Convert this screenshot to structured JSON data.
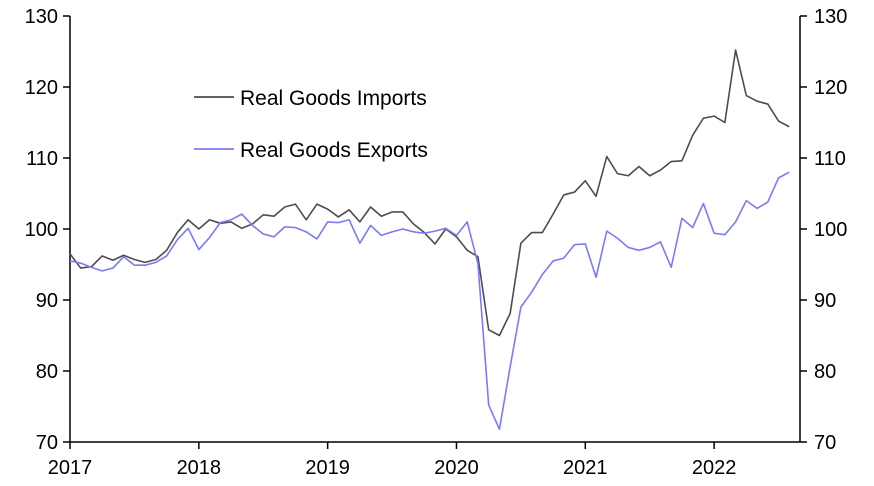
{
  "chart_data": {
    "type": "line",
    "title": "",
    "xlabel": "",
    "ylabel": "",
    "ylim": [
      70,
      130
    ],
    "xlim": [
      "2017-01",
      "2022-09"
    ],
    "yticks": [
      70,
      80,
      90,
      100,
      110,
      120,
      130
    ],
    "xticks": [
      {
        "label": "2017",
        "x": "2017-01"
      },
      {
        "label": "2018",
        "x": "2018-01"
      },
      {
        "label": "2019",
        "x": "2019-01"
      },
      {
        "label": "2020",
        "x": "2020-01"
      },
      {
        "label": "2021",
        "x": "2021-01"
      },
      {
        "label": "2022",
        "x": "2022-01"
      }
    ],
    "dual_y_axis": true,
    "grid": false,
    "legend_position": "upper-left",
    "series": [
      {
        "name": "Real Goods Imports",
        "color": "#4d4d4d",
        "x": [
          "2017-01",
          "2017-02",
          "2017-03",
          "2017-04",
          "2017-05",
          "2017-06",
          "2017-07",
          "2017-08",
          "2017-09",
          "2017-10",
          "2017-11",
          "2017-12",
          "2018-01",
          "2018-02",
          "2018-03",
          "2018-04",
          "2018-05",
          "2018-06",
          "2018-07",
          "2018-08",
          "2018-09",
          "2018-10",
          "2018-11",
          "2018-12",
          "2019-01",
          "2019-02",
          "2019-03",
          "2019-04",
          "2019-05",
          "2019-06",
          "2019-07",
          "2019-08",
          "2019-09",
          "2019-10",
          "2019-11",
          "2019-12",
          "2020-01",
          "2020-02",
          "2020-03",
          "2020-04",
          "2020-05",
          "2020-06",
          "2020-07",
          "2020-08",
          "2020-09",
          "2020-10",
          "2020-11",
          "2020-12",
          "2021-01",
          "2021-02",
          "2021-03",
          "2021-04",
          "2021-05",
          "2021-06",
          "2021-07",
          "2021-08",
          "2021-09",
          "2021-10",
          "2021-11",
          "2021-12",
          "2022-01",
          "2022-02",
          "2022-03",
          "2022-04",
          "2022-05",
          "2022-06",
          "2022-07",
          "2022-08"
        ],
        "values": [
          96.5,
          94.5,
          94.7,
          96.2,
          95.6,
          96.3,
          95.7,
          95.3,
          95.7,
          97.0,
          99.5,
          101.3,
          100.0,
          101.3,
          100.8,
          101.0,
          100.1,
          100.7,
          102.0,
          101.8,
          103.1,
          103.5,
          101.3,
          103.5,
          102.8,
          101.7,
          102.7,
          101.0,
          103.1,
          101.8,
          102.4,
          102.4,
          100.7,
          99.5,
          97.9,
          100.0,
          98.9,
          97.0,
          96.1,
          85.8,
          85.0,
          88.1,
          98.0,
          99.5,
          99.5,
          102.1,
          104.8,
          105.2,
          106.8,
          104.6,
          110.2,
          107.8,
          107.5,
          108.8,
          107.5,
          108.3,
          109.5,
          109.6,
          113.2,
          115.6,
          115.9,
          115.0,
          125.2,
          118.8,
          118.0,
          117.6,
          115.2,
          114.4
        ]
      },
      {
        "name": "Real Goods Exports",
        "color": "#7b7bf5",
        "x": [
          "2017-01",
          "2017-02",
          "2017-03",
          "2017-04",
          "2017-05",
          "2017-06",
          "2017-07",
          "2017-08",
          "2017-09",
          "2017-10",
          "2017-11",
          "2017-12",
          "2018-01",
          "2018-02",
          "2018-03",
          "2018-04",
          "2018-05",
          "2018-06",
          "2018-07",
          "2018-08",
          "2018-09",
          "2018-10",
          "2018-11",
          "2018-12",
          "2019-01",
          "2019-02",
          "2019-03",
          "2019-04",
          "2019-05",
          "2019-06",
          "2019-07",
          "2019-08",
          "2019-09",
          "2019-10",
          "2019-11",
          "2019-12",
          "2020-01",
          "2020-02",
          "2020-03",
          "2020-04",
          "2020-05",
          "2020-06",
          "2020-07",
          "2020-08",
          "2020-09",
          "2020-10",
          "2020-11",
          "2020-12",
          "2021-01",
          "2021-02",
          "2021-03",
          "2021-04",
          "2021-05",
          "2021-06",
          "2021-07",
          "2021-08",
          "2021-09",
          "2021-10",
          "2021-11",
          "2021-12",
          "2022-01",
          "2022-02",
          "2022-03",
          "2022-04",
          "2022-05",
          "2022-06",
          "2022-07",
          "2022-08"
        ],
        "values": [
          95.5,
          95.2,
          94.6,
          94.1,
          94.5,
          96.1,
          94.9,
          94.9,
          95.3,
          96.2,
          98.5,
          100.1,
          97.1,
          98.8,
          100.9,
          101.3,
          102.1,
          100.5,
          99.3,
          98.9,
          100.3,
          100.2,
          99.6,
          98.6,
          101.0,
          100.9,
          101.3,
          98.0,
          100.5,
          99.1,
          99.6,
          100.0,
          99.6,
          99.4,
          99.7,
          100.1,
          99.1,
          101.0,
          95.1,
          75.2,
          71.8,
          80.6,
          89.0,
          91.1,
          93.6,
          95.5,
          95.9,
          97.8,
          97.9,
          93.2,
          99.7,
          98.7,
          97.4,
          97.0,
          97.4,
          98.2,
          94.6,
          101.5,
          100.2,
          103.6,
          99.4,
          99.2,
          101.0,
          104.0,
          102.9,
          103.8,
          107.2,
          108.0
        ]
      }
    ]
  }
}
